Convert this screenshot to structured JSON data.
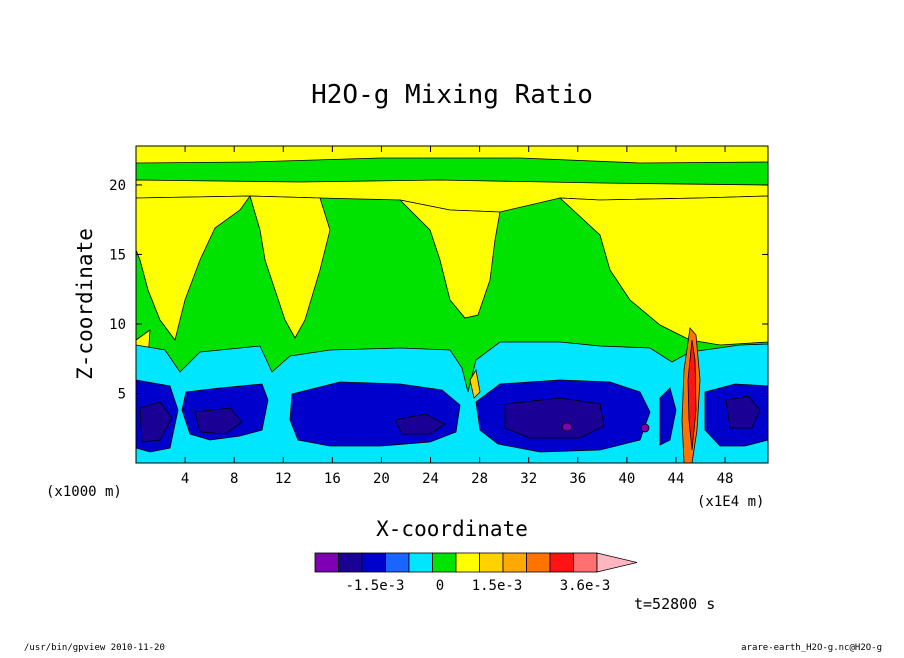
{
  "chart_data": {
    "type": "heatmap",
    "title": "H2O-g Mixing Ratio",
    "xlabel": "X-coordinate",
    "ylabel": "Z-coordinate",
    "x_unit_label": "(x1000 m)",
    "x_multiplier_label": "(x1E4 m)",
    "xlim": [
      0,
      51.5
    ],
    "ylim": [
      0,
      22.8
    ],
    "xticks": [
      "4",
      "8",
      "12",
      "16",
      "20",
      "24",
      "28",
      "32",
      "36",
      "40",
      "44",
      "48"
    ],
    "xtick_values": [
      4,
      8,
      12,
      16,
      20,
      24,
      28,
      32,
      36,
      40,
      44,
      48
    ],
    "yticks": [
      "5",
      "10",
      "15",
      "20"
    ],
    "ytick_values": [
      5,
      10,
      15,
      20
    ],
    "colorbar": {
      "labels": [
        "-1.5e-3",
        "0",
        "1.5e-3",
        "3.6e-3"
      ],
      "colors": [
        "#7f00b2",
        "#1a0095",
        "#0000cd",
        "#1a64ff",
        "#00e6ff",
        "#00e200",
        "#ffff00",
        "#ffd200",
        "#ffaa00",
        "#ff7300",
        "#ff1414",
        "#ff7070",
        "#ffb6c1"
      ]
    },
    "fields": {
      "background": "#00e200",
      "near_surface_band": "#00e6ff",
      "moist_low_layer": "#0000cd",
      "moist_core": "#1a0095",
      "dry_upper": "#ffff00"
    },
    "time_label": "t=52800 s"
  },
  "footer": {
    "left": "/usr/bin/gpview  2010-11-20",
    "right": "arare-earth_H2O-g.nc@H2O-g"
  }
}
